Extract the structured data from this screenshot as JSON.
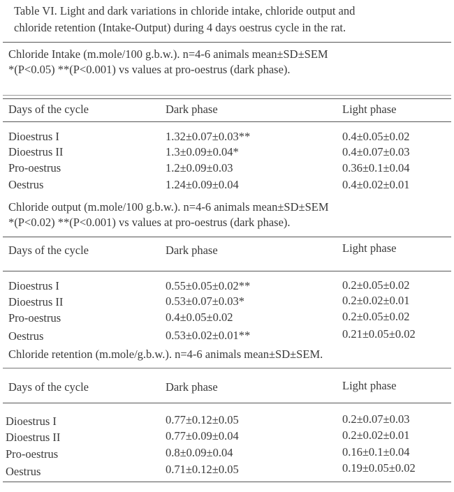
{
  "title": [
    "Table VI. Light and dark variations in chloride intake, chloride output and",
    "chloride retention (Intake-Output) during 4 days oestrus cycle in the rat."
  ],
  "sections": [
    {
      "caption": [
        "Chloride Intake (m.mole/100 g.b.w.). n=4-6 animals mean±SD±SEM",
        "*(P<0.05) **(P<0.001) vs values at pro-oestrus (dark phase)."
      ],
      "headers": [
        "Days of the cycle",
        "Dark phase",
        "Light phase"
      ],
      "rows": [
        [
          "Dioestrus I",
          "1.32±0.07±0.03**",
          "0.4±0.05±0.02"
        ],
        [
          "Dioestrus II",
          "1.3±0.09±0.04*",
          "0.4±0.07±0.03"
        ],
        [
          "Pro-oestrus",
          "1.2±0.09±0.03",
          "0.36±0.1±0.04"
        ],
        [
          "Oestrus",
          "1.24±0.09±0.04",
          "0.4±0.02±0.01"
        ]
      ]
    },
    {
      "caption": [
        "Chloride output (m.mole/100 g.b.w.).  n=4-6 animals mean±SD±SEM",
        "*(P<0.02) **(P<0.001) vs values at pro-oestrus (dark phase)."
      ],
      "headers": [
        "Days of the cycle",
        "Dark phase",
        "Light phase"
      ],
      "rows": [
        [
          "Dioestrus I",
          "0.55±0.05±0.02**",
          "0.2±0.05±0.02"
        ],
        [
          "Dioestrus II",
          "0.53±0.07±0.03*",
          "0.2±0.02±0.01"
        ],
        [
          "Pro-oestrus",
          "0.4±0.05±0.02",
          "0.2±0.05±0.02"
        ],
        [
          "Oestrus",
          "0.53±0.02±0.01**",
          "0.21±0.05±0.02"
        ]
      ]
    },
    {
      "caption": [
        "Chloride retention (m.mole/g.b.w.). n=4-6 animals mean±SD±SEM."
      ],
      "headers": [
        "Days of the cycle",
        "Dark phase",
        "Light phase"
      ],
      "rows": [
        [
          "Dioestrus I",
          "0.77±0.12±0.05",
          "0.2±0.07±0.03"
        ],
        [
          "Dioestrus II",
          "0.77±0.09±0.04",
          "0.2±0.02±0.01"
        ],
        [
          "Pro-oestrus",
          "0.8±0.09±0.04",
          "0.16±0.1±0.04"
        ],
        [
          "Oestrus",
          "0.71±0.12±0.05",
          "0.19±0.05±0.02"
        ]
      ]
    }
  ]
}
